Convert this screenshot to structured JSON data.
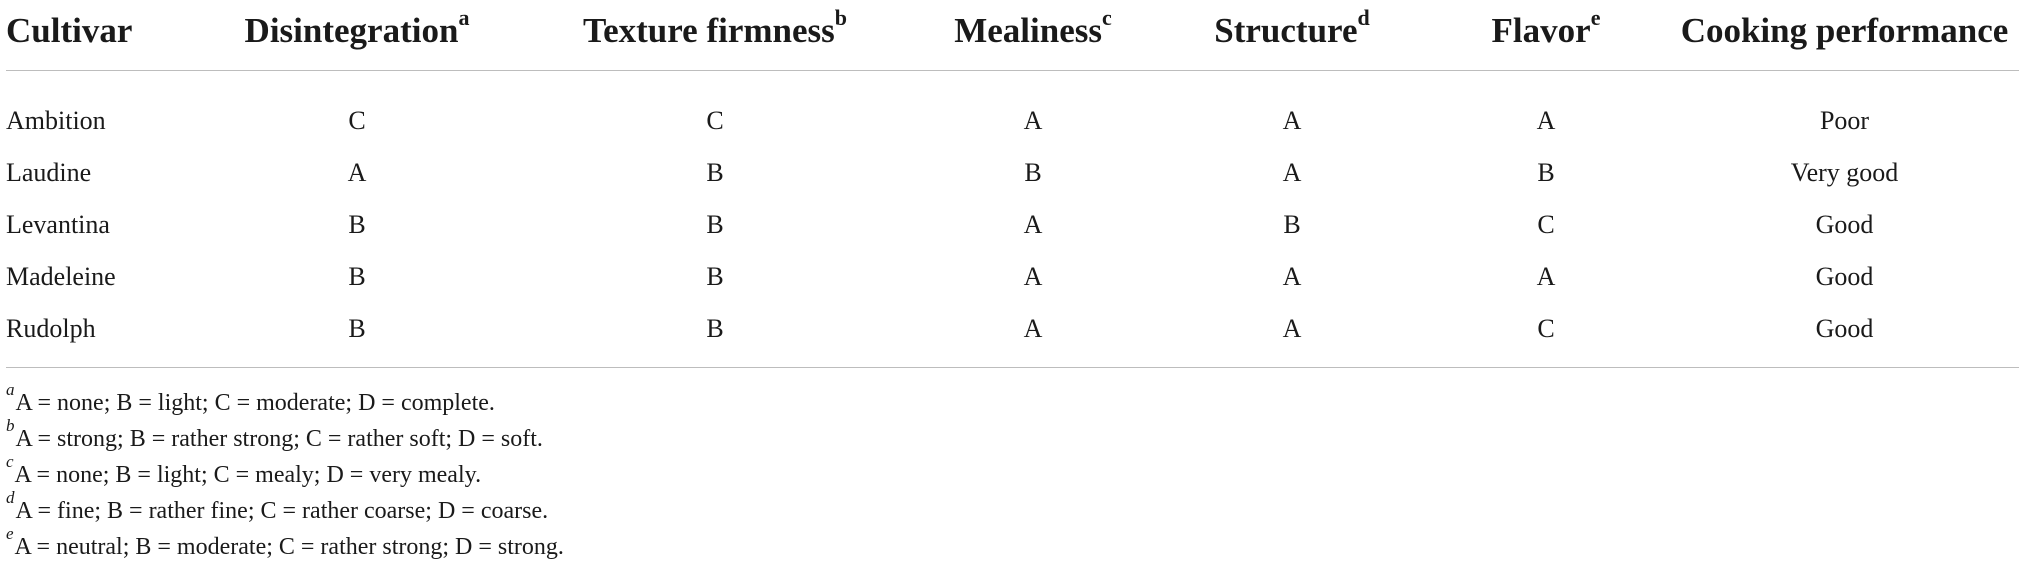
{
  "table": {
    "headers": [
      {
        "label": "Cultivar",
        "sup": ""
      },
      {
        "label": "Disintegration",
        "sup": "a"
      },
      {
        "label": "Texture firmness",
        "sup": "b"
      },
      {
        "label": "Mealiness",
        "sup": "c"
      },
      {
        "label": "Structure",
        "sup": "d"
      },
      {
        "label": "Flavor",
        "sup": "e"
      },
      {
        "label": "Cooking performance",
        "sup": ""
      }
    ],
    "rows": [
      [
        "Ambition",
        "C",
        "C",
        "A",
        "A",
        "A",
        "Poor"
      ],
      [
        "Laudine",
        "A",
        "B",
        "B",
        "A",
        "B",
        "Very good"
      ],
      [
        "Levantina",
        "B",
        "B",
        "A",
        "B",
        "C",
        "Good"
      ],
      [
        "Madeleine",
        "B",
        "B",
        "A",
        "A",
        "A",
        "Good"
      ],
      [
        "Rudolph",
        "B",
        "B",
        "A",
        "A",
        "C",
        "Good"
      ]
    ]
  },
  "footnotes": [
    {
      "mark": "a",
      "text": "A = none; B = light; C = moderate; D = complete."
    },
    {
      "mark": "b",
      "text": "A = strong; B = rather strong; C = rather soft; D = soft."
    },
    {
      "mark": "c",
      "text": "A = none; B = light; C = mealy; D = very mealy."
    },
    {
      "mark": "d",
      "text": "A = fine; B = rather fine; C = rather coarse; D = coarse."
    },
    {
      "mark": "e",
      "text": "A = neutral; B = moderate; C = rather strong; D = strong."
    }
  ]
}
